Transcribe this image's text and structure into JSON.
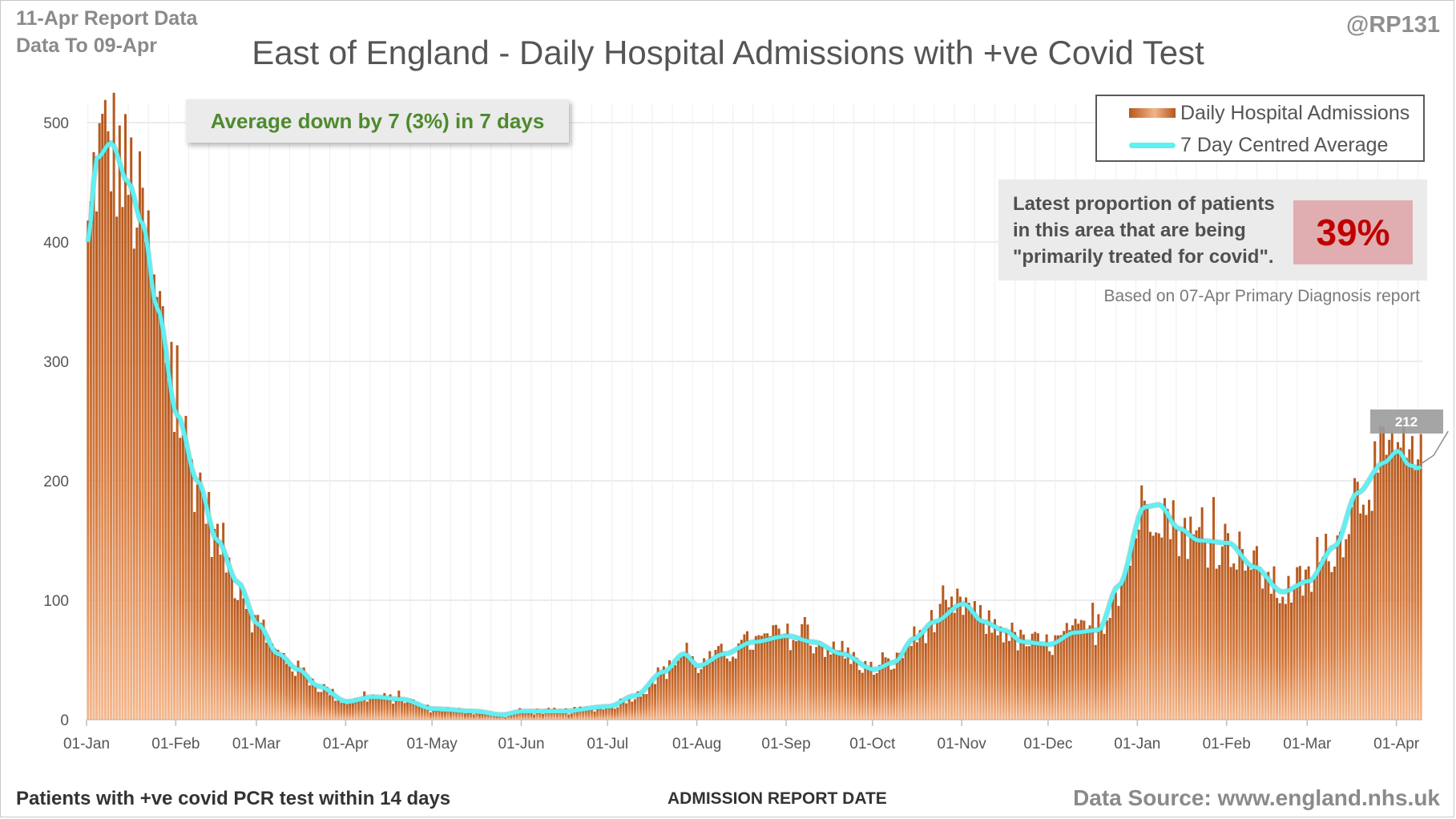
{
  "header": {
    "report_date": "11-Apr Report Data",
    "data_to": "Data To 09-Apr",
    "handle": "@RP131"
  },
  "annotations": {
    "average_change": "Average down by 7 (3%) in 7 days",
    "proportion_text": "Latest proportion of patients in this area that are being \"primarily treated for covid\".",
    "proportion_value": "39%",
    "based_on": "Based on 07-Apr Primary Diagnosis report",
    "latest_average_label": "212"
  },
  "footer": {
    "left": "Patients with +ve covid PCR test within 14 days",
    "center": "ADMISSION  REPORT DATE",
    "source": "Data Source: www.england.nhs.uk"
  },
  "colors": {
    "bar_dark": "#b5571c",
    "bar_light": "#f4b88e",
    "average_line": "#5ff0f2",
    "average_text": "#4e8a2e",
    "proportion_value": "#c00000",
    "proportion_bg": "#e0aeb0",
    "gridline": "#d9d9d9"
  },
  "chart_data": {
    "type": "bar",
    "title": "East of England - Daily Hospital Admissions with +ve Covid Test",
    "xlabel": "ADMISSION  REPORT DATE",
    "ylabel": "",
    "ylim": [
      0,
      520
    ],
    "y_ticks": [
      "0",
      "100",
      "200",
      "300",
      "400",
      "500"
    ],
    "x_tick_labels": [
      "01-Jan",
      "01-Feb",
      "01-Mar",
      "01-Apr",
      "01-May",
      "01-Jun",
      "01-Jul",
      "01-Aug",
      "01-Sep",
      "01-Oct",
      "01-Nov",
      "01-Dec",
      "01-Jan",
      "01-Feb",
      "01-Mar",
      "01-Apr"
    ],
    "x_start": "2021-01-01",
    "x_end": "2022-04-09",
    "grid": true,
    "legend_position": "top-right",
    "series": [
      {
        "name": "Daily Hospital Admissions",
        "type": "bar",
        "note": "daily values, one bar per day; approximated from the 7-day average with day-to-day noise",
        "daily_average_keypoints": [
          [
            "2021-01-01",
            400
          ],
          [
            "2021-01-04",
            470
          ],
          [
            "2021-01-09",
            483
          ],
          [
            "2021-01-15",
            450
          ],
          [
            "2021-01-20",
            415
          ],
          [
            "2021-01-25",
            345
          ],
          [
            "2021-02-01",
            255
          ],
          [
            "2021-02-08",
            200
          ],
          [
            "2021-02-15",
            150
          ],
          [
            "2021-02-22",
            115
          ],
          [
            "2021-03-01",
            80
          ],
          [
            "2021-03-08",
            55
          ],
          [
            "2021-03-15",
            42
          ],
          [
            "2021-03-22",
            28
          ],
          [
            "2021-04-01",
            15
          ],
          [
            "2021-04-10",
            19
          ],
          [
            "2021-04-20",
            17
          ],
          [
            "2021-05-01",
            9
          ],
          [
            "2021-05-15",
            7
          ],
          [
            "2021-05-25",
            4
          ],
          [
            "2021-06-01",
            7
          ],
          [
            "2021-06-15",
            7
          ],
          [
            "2021-07-01",
            11
          ],
          [
            "2021-07-10",
            20
          ],
          [
            "2021-07-20",
            40
          ],
          [
            "2021-07-27",
            55
          ],
          [
            "2021-08-01",
            45
          ],
          [
            "2021-08-10",
            55
          ],
          [
            "2021-08-20",
            65
          ],
          [
            "2021-09-01",
            70
          ],
          [
            "2021-09-10",
            65
          ],
          [
            "2021-09-20",
            55
          ],
          [
            "2021-10-01",
            42
          ],
          [
            "2021-10-08",
            48
          ],
          [
            "2021-10-15",
            68
          ],
          [
            "2021-10-22",
            82
          ],
          [
            "2021-11-01",
            97
          ],
          [
            "2021-11-08",
            82
          ],
          [
            "2021-11-15",
            75
          ],
          [
            "2021-11-22",
            65
          ],
          [
            "2021-12-01",
            63
          ],
          [
            "2021-12-10",
            73
          ],
          [
            "2021-12-18",
            75
          ],
          [
            "2021-12-25",
            112
          ],
          [
            "2022-01-03",
            178
          ],
          [
            "2022-01-08",
            180
          ],
          [
            "2022-01-15",
            160
          ],
          [
            "2022-01-22",
            150
          ],
          [
            "2022-02-01",
            148
          ],
          [
            "2022-02-10",
            128
          ],
          [
            "2022-02-20",
            107
          ],
          [
            "2022-03-01",
            116
          ],
          [
            "2022-03-10",
            145
          ],
          [
            "2022-03-18",
            190
          ],
          [
            "2022-03-27",
            215
          ],
          [
            "2022-04-01",
            225
          ],
          [
            "2022-04-05",
            213
          ],
          [
            "2022-04-09",
            210
          ]
        ]
      },
      {
        "name": "7 Day Centred Average",
        "type": "line",
        "latest_value": 212
      }
    ]
  }
}
